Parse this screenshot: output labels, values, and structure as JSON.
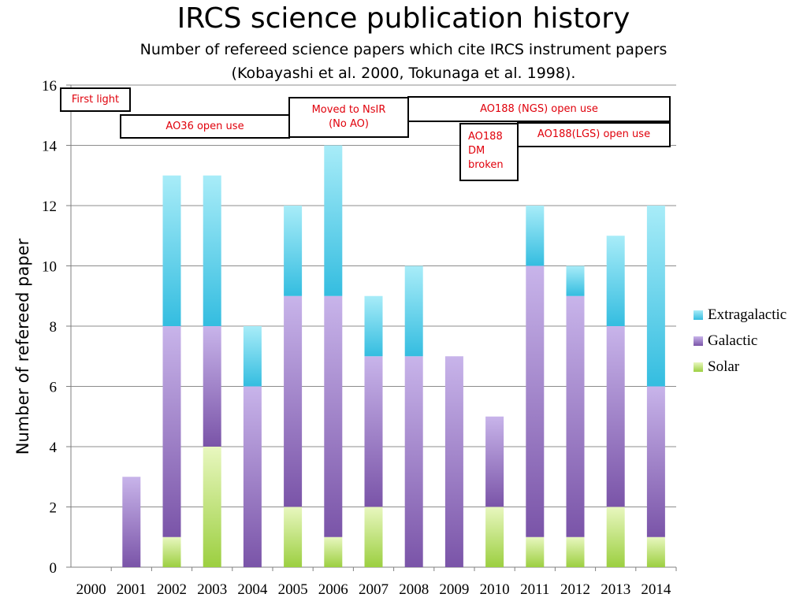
{
  "title": "IRCS science publication history",
  "subtitle_line1": "Number of refereed science papers which cite IRCS instrument papers",
  "subtitle_line2": "(Kobayashi et al. 2000, Tokunaga et al. 1998).",
  "annotations": {
    "first_light": "First light",
    "ao36": "AO36 open use",
    "nsir": "Moved to NsIR\n(No AO)",
    "ao188_ngs": "AO188 (NGS) open use",
    "ao188_dm": "AO188\nDM\nbroken",
    "ao188_lgs": "AO188(LGS) open use"
  },
  "colors": {
    "solar": "#a6d64a",
    "galactic": "#8a64b8",
    "extragalactic": "#3cc3e4"
  },
  "chart_data": {
    "type": "bar",
    "stacked": true,
    "categories": [
      "2000",
      "2001",
      "2002",
      "2003",
      "2004",
      "2005",
      "2006",
      "2007",
      "2008",
      "2009",
      "2010",
      "2011",
      "2012",
      "2013",
      "2014"
    ],
    "series": [
      {
        "name": "Solar",
        "values": [
          0,
          0,
          1,
          4,
          0,
          2,
          1,
          2,
          0,
          0,
          2,
          1,
          1,
          2,
          1
        ]
      },
      {
        "name": "Galactic",
        "values": [
          0,
          3,
          7,
          4,
          6,
          7,
          8,
          5,
          7,
          7,
          3,
          9,
          8,
          6,
          5
        ]
      },
      {
        "name": "Extragalactic",
        "values": [
          0,
          0,
          5,
          5,
          2,
          3,
          5,
          2,
          3,
          0,
          0,
          2,
          1,
          3,
          6
        ]
      }
    ],
    "ylabel": "Number of refereed paper",
    "xlabel": "",
    "ylim": [
      0,
      16
    ],
    "yticks": [
      "0",
      "2",
      "4",
      "6",
      "8",
      "10",
      "12",
      "14",
      "16"
    ],
    "grid": true,
    "legend": "right"
  }
}
